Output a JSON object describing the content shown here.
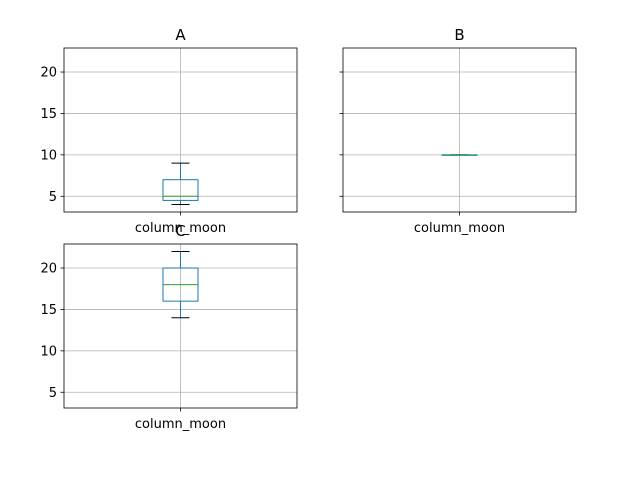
{
  "chart_data": [
    {
      "type": "box",
      "title": "A",
      "categories": [
        "column_moon"
      ],
      "ylim": [
        3.1,
        22.9
      ],
      "yticks": [
        5,
        10,
        15,
        20
      ],
      "grid": true,
      "boxes": [
        {
          "whisker_low": 4,
          "q1": 4.5,
          "median": 5,
          "q3": 7,
          "whisker_high": 9
        }
      ]
    },
    {
      "type": "box",
      "title": "B",
      "categories": [
        "column_moon"
      ],
      "ylim": [
        3.1,
        22.9
      ],
      "yticks": [
        5,
        10,
        15,
        20
      ],
      "grid": true,
      "boxes": [
        {
          "whisker_low": 10,
          "q1": 10,
          "median": 10,
          "q3": 10,
          "whisker_high": 10
        }
      ]
    },
    {
      "type": "box",
      "title": "C",
      "categories": [
        "column_moon"
      ],
      "ylim": [
        3.1,
        22.9
      ],
      "yticks": [
        5,
        10,
        15,
        20
      ],
      "grid": true,
      "boxes": [
        {
          "whisker_low": 14,
          "q1": 16,
          "median": 18,
          "q3": 20,
          "whisker_high": 22
        }
      ]
    }
  ],
  "colors": {
    "box": "#1f77b4",
    "median": "#2ca02c",
    "whisker": "#000000",
    "grid": "#b0b0b0"
  }
}
